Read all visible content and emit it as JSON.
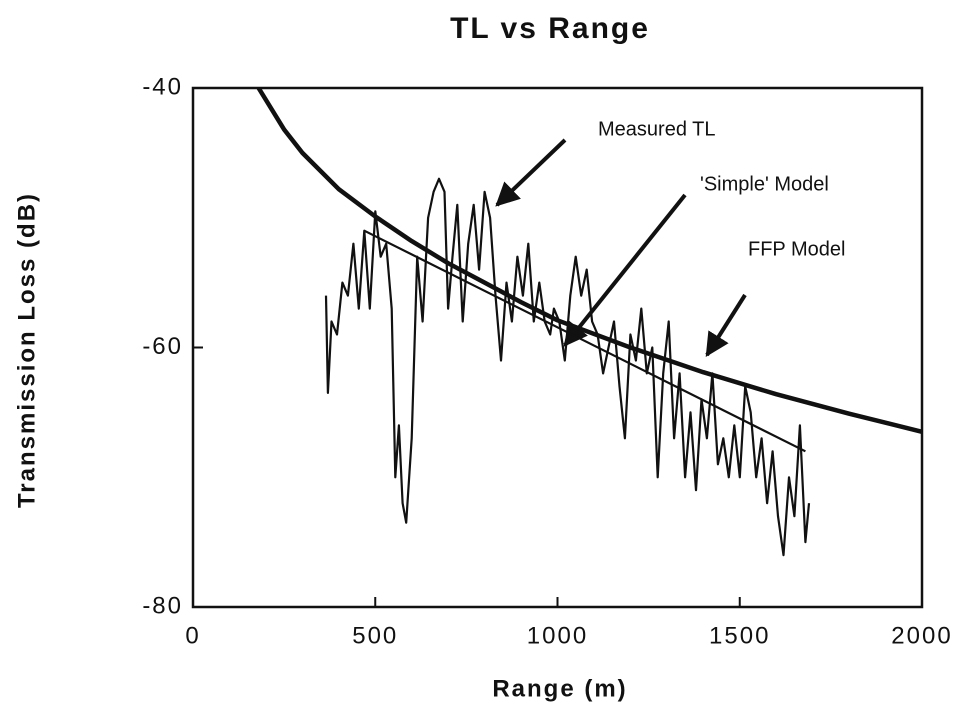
{
  "chart_data": {
    "type": "line",
    "title": "TL vs Range",
    "x_label": "Range  (m)",
    "y_label": "Transmission  Loss  (dB)",
    "xlim": [
      0,
      2000
    ],
    "xticks": [
      0,
      500,
      1000,
      1500,
      2000
    ],
    "ylim": [
      -80,
      -40
    ],
    "yticks": [
      -80,
      -60,
      -40
    ],
    "series": [
      {
        "name": "Measured TL",
        "color": "#111111",
        "width": 2.2,
        "x": [
          365,
          370,
          380,
          395,
          410,
          425,
          440,
          455,
          470,
          485,
          500,
          515,
          530,
          545,
          555,
          565,
          575,
          585,
          600,
          615,
          630,
          645,
          660,
          675,
          690,
          700,
          712,
          725,
          740,
          755,
          770,
          785,
          800,
          815,
          830,
          845,
          860,
          875,
          890,
          905,
          920,
          935,
          950,
          965,
          980,
          990,
          1005,
          1020,
          1035,
          1050,
          1065,
          1080,
          1095,
          1110,
          1125,
          1140,
          1155,
          1170,
          1185,
          1200,
          1215,
          1230,
          1245,
          1260,
          1275,
          1290,
          1305,
          1320,
          1335,
          1350,
          1365,
          1380,
          1395,
          1410,
          1425,
          1440,
          1455,
          1470,
          1485,
          1500,
          1515,
          1530,
          1545,
          1560,
          1575,
          1590,
          1605,
          1620,
          1635,
          1650,
          1665,
          1680,
          1690
        ],
        "values": [
          -56,
          -63.5,
          -58,
          -59,
          -55,
          -56,
          -52,
          -57,
          -51,
          -57,
          -49.5,
          -53,
          -52,
          -57,
          -70,
          -66,
          -72,
          -73.5,
          -67,
          -53,
          -58,
          -50,
          -48,
          -47,
          -48,
          -57,
          -53,
          -49,
          -58,
          -52,
          -49,
          -54,
          -48,
          -50,
          -56,
          -61,
          -55,
          -58,
          -53,
          -56,
          -52,
          -58,
          -55,
          -58,
          -59,
          -57,
          -58,
          -61,
          -56,
          -53,
          -56,
          -54,
          -58,
          -59,
          -62,
          -60,
          -58,
          -63,
          -67,
          -59,
          -61,
          -57,
          -62,
          -60,
          -70,
          -62,
          -58,
          -67,
          -62,
          -70,
          -65,
          -71,
          -64,
          -67,
          -62,
          -69,
          -67,
          -70,
          -66,
          -70,
          -63,
          -65,
          -70,
          -67,
          -72,
          -68,
          -73,
          -76,
          -70,
          -73,
          -66,
          -75,
          -72
        ]
      },
      {
        "name": "'Simple' Model",
        "color": "#111111",
        "width": 2.2,
        "x": [
          470,
          1680
        ],
        "values": [
          -51,
          -68
        ]
      },
      {
        "name": "FFP Model",
        "color": "#111111",
        "width": 4.5,
        "x": [
          180,
          250,
          300,
          400,
          500,
          600,
          700,
          800,
          900,
          1000,
          1200,
          1400,
          1600,
          1800,
          2000
        ],
        "values": [
          -40,
          -43.2,
          -45,
          -47.8,
          -49.9,
          -51.8,
          -53.5,
          -55,
          -56.5,
          -57.9,
          -60,
          -61.9,
          -63.6,
          -65.1,
          -66.5
        ]
      }
    ]
  }
}
